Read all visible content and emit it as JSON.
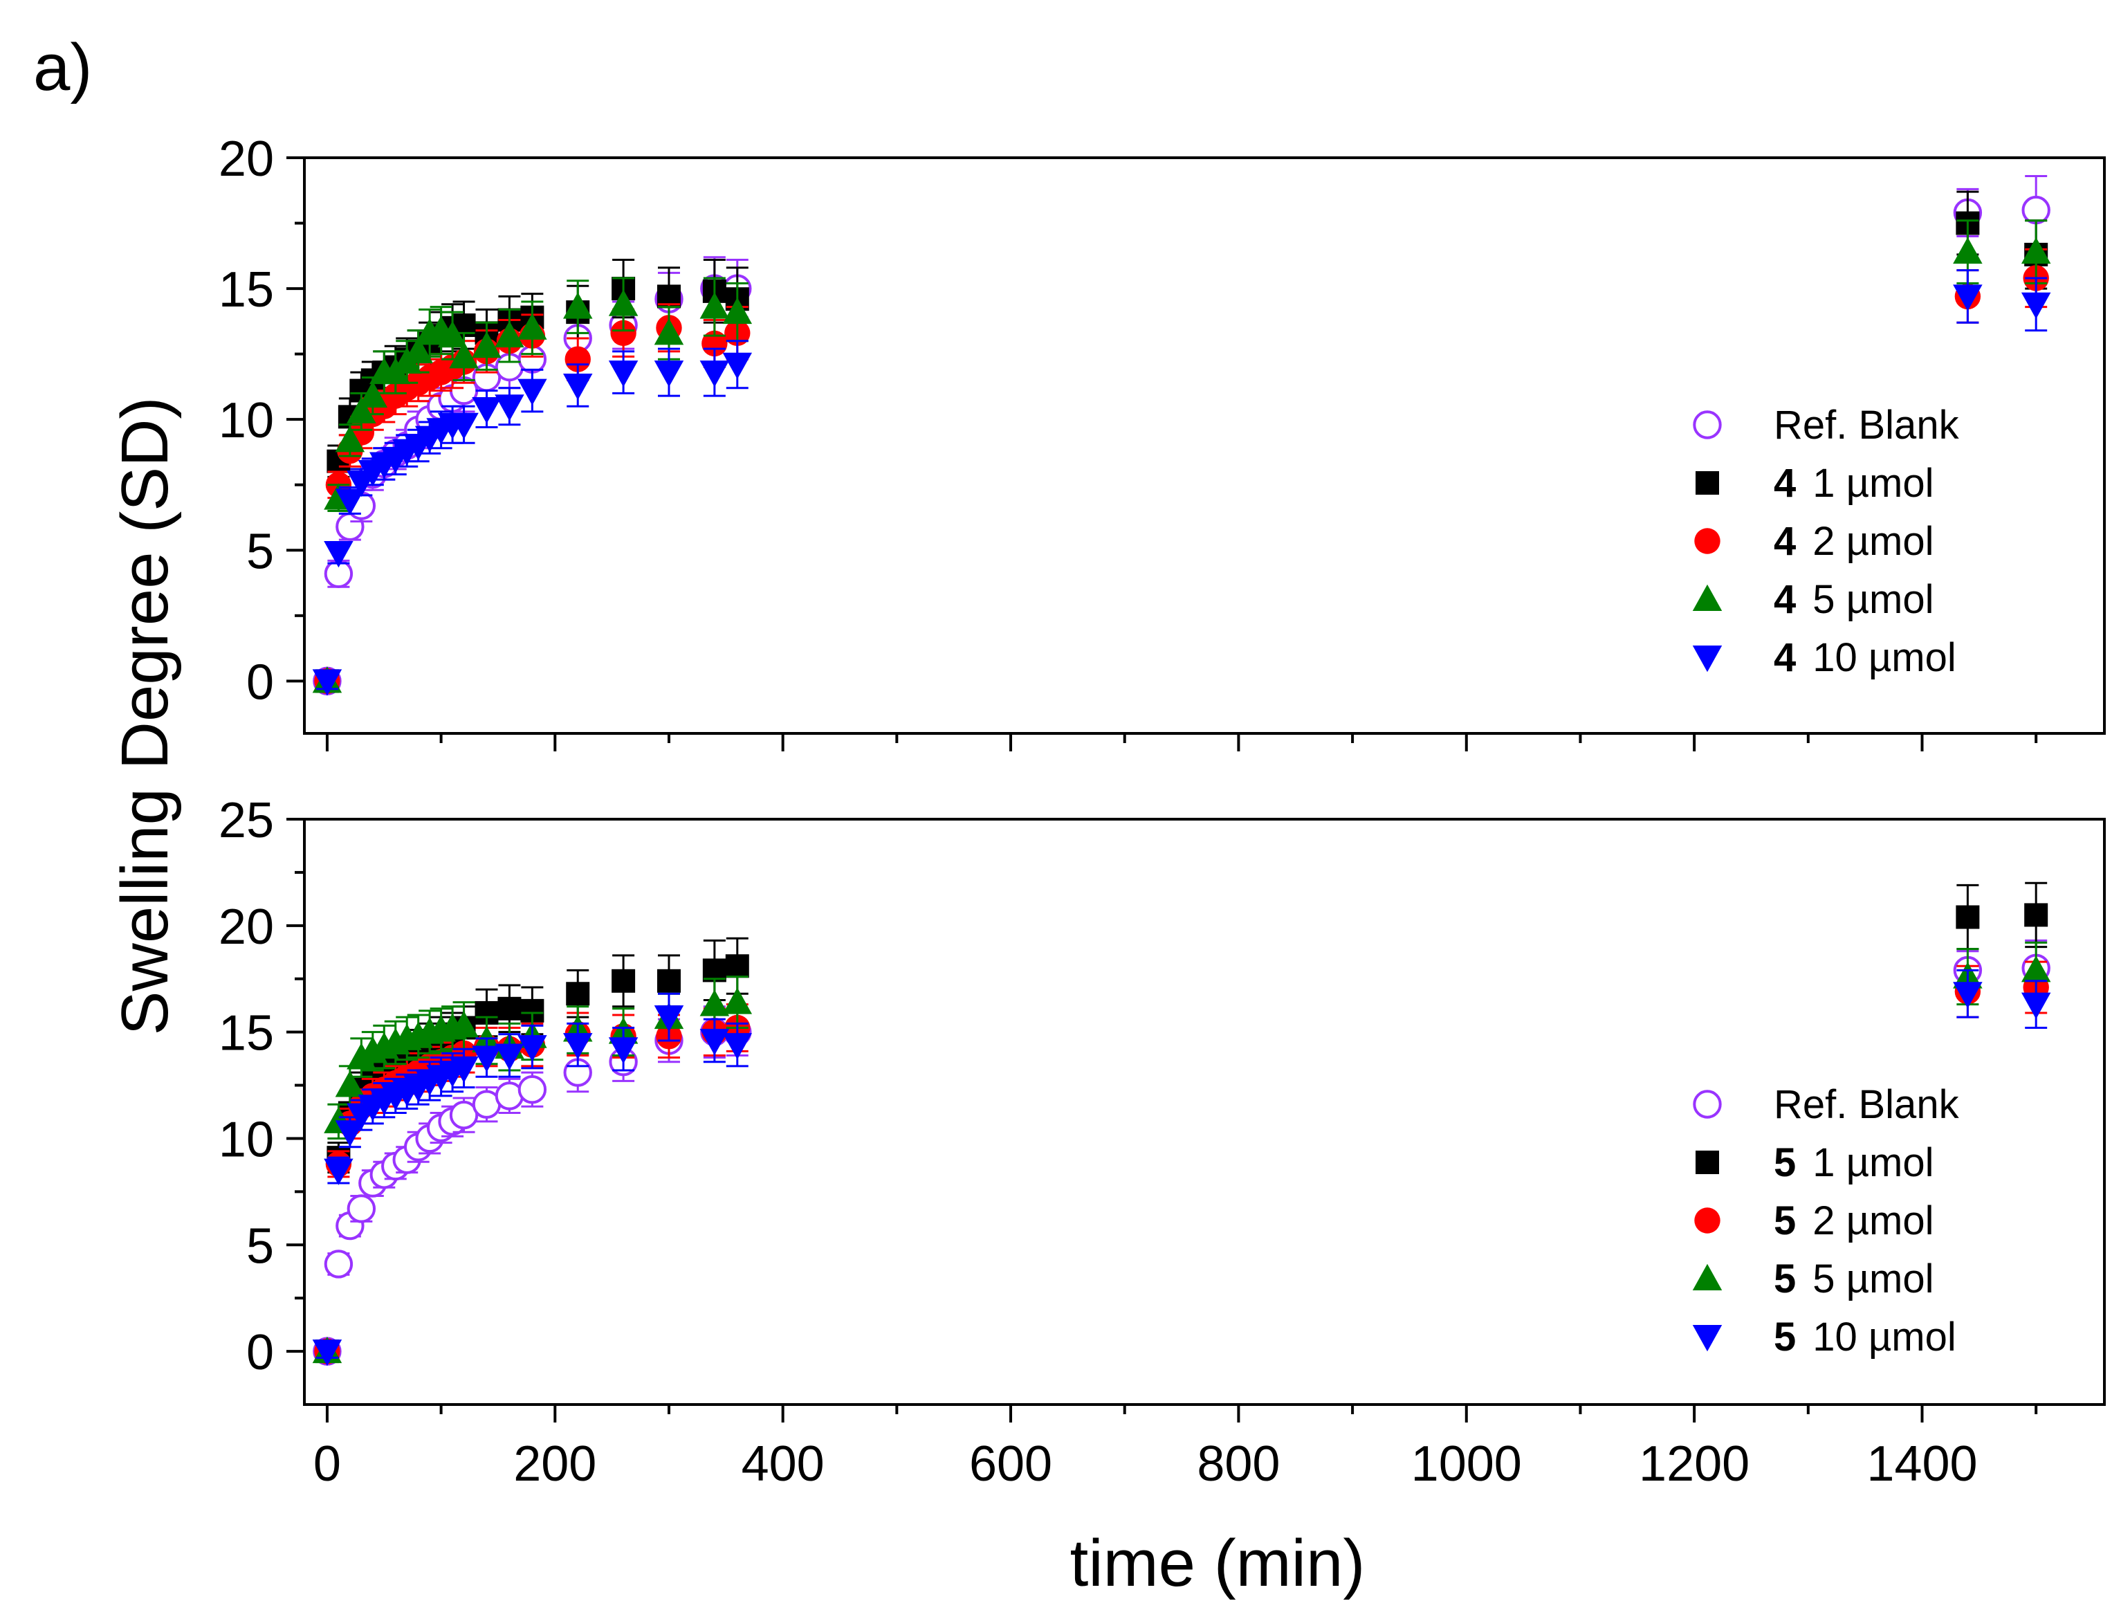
{
  "figure": {
    "panel_label": "a)"
  },
  "chart_data": [
    {
      "type": "scatter",
      "panel": "top",
      "compound": "4",
      "xlabel": "time (min)",
      "ylabel": "Swelling Degree (SD)",
      "xlim": [
        -20,
        1560
      ],
      "ylim": [
        -2,
        20
      ],
      "x_ticks": [
        0,
        200,
        400,
        600,
        800,
        1000,
        1200,
        1400
      ],
      "y_ticks": [
        0,
        5,
        10,
        15,
        20
      ],
      "legend_position": "right-middle",
      "series": [
        {
          "name": "Ref. Blank",
          "label_bold": "",
          "label_rest": "Ref. Blank",
          "marker": "circle-open",
          "color": "#9933ff",
          "x": [
            0,
            10,
            20,
            30,
            40,
            50,
            60,
            70,
            80,
            90,
            100,
            110,
            120,
            140,
            160,
            180,
            220,
            260,
            300,
            340,
            360,
            1440,
            1500
          ],
          "y": [
            0,
            4.1,
            5.9,
            6.7,
            7.9,
            8.3,
            8.7,
            9.0,
            9.6,
            10.0,
            10.5,
            10.8,
            11.1,
            11.6,
            12.0,
            12.3,
            13.1,
            13.6,
            14.6,
            15.0,
            15.0,
            17.9,
            18.0
          ],
          "err": [
            0.3,
            0.5,
            0.5,
            0.6,
            0.6,
            0.6,
            0.6,
            0.6,
            0.7,
            0.7,
            0.7,
            0.7,
            0.8,
            0.8,
            0.8,
            0.8,
            0.9,
            0.9,
            1.0,
            1.2,
            1.1,
            0.9,
            1.3
          ]
        },
        {
          "name": "4 1 µmol",
          "label_bold": "4",
          "label_rest": "1 µmol",
          "marker": "square",
          "color": "#000000",
          "x": [
            0,
            10,
            20,
            30,
            40,
            50,
            60,
            70,
            80,
            90,
            100,
            110,
            120,
            140,
            160,
            180,
            220,
            260,
            300,
            340,
            360,
            1440,
            1500
          ],
          "y": [
            0,
            8.4,
            10.1,
            11.1,
            11.5,
            11.8,
            12.0,
            12.3,
            12.6,
            12.9,
            13.2,
            13.5,
            13.6,
            13.3,
            13.8,
            13.9,
            14.1,
            15.0,
            14.7,
            14.9,
            14.6,
            17.5,
            16.3
          ],
          "err": [
            0.3,
            0.6,
            0.7,
            0.7,
            0.7,
            0.8,
            0.8,
            0.8,
            0.8,
            0.8,
            0.9,
            0.9,
            0.9,
            0.9,
            0.9,
            0.9,
            1.0,
            1.1,
            1.1,
            1.2,
            1.2,
            1.2,
            1.3
          ]
        },
        {
          "name": "4 2 µmol",
          "label_bold": "4",
          "label_rest": "2 µmol",
          "marker": "circle",
          "color": "#ff0000",
          "x": [
            0,
            10,
            20,
            30,
            40,
            50,
            60,
            70,
            80,
            90,
            100,
            110,
            120,
            140,
            160,
            180,
            220,
            260,
            300,
            340,
            360,
            1440,
            1500
          ],
          "y": [
            0,
            7.5,
            8.8,
            9.5,
            10.2,
            10.5,
            10.9,
            11.2,
            11.4,
            11.6,
            11.8,
            12.0,
            12.2,
            12.6,
            13.0,
            13.2,
            12.3,
            13.3,
            13.5,
            12.9,
            13.3,
            14.7,
            15.4
          ],
          "err": [
            0.3,
            0.5,
            0.6,
            0.6,
            0.6,
            0.6,
            0.7,
            0.7,
            0.7,
            0.7,
            0.7,
            0.8,
            0.8,
            0.8,
            0.8,
            0.8,
            0.8,
            0.9,
            0.9,
            0.9,
            1.0,
            1.0,
            1.1
          ]
        },
        {
          "name": "4 5 µmol",
          "label_bold": "4",
          "label_rest": "5 µmol",
          "marker": "triangle-up",
          "color": "#008000",
          "x": [
            0,
            10,
            20,
            30,
            40,
            50,
            60,
            70,
            80,
            90,
            100,
            110,
            120,
            140,
            160,
            180,
            220,
            260,
            300,
            340,
            360,
            1440,
            1500
          ],
          "y": [
            0,
            7.0,
            9.2,
            10.3,
            10.9,
            11.8,
            11.8,
            12.2,
            12.6,
            13.3,
            13.4,
            13.2,
            12.4,
            12.8,
            13.2,
            13.5,
            14.3,
            14.4,
            13.3,
            14.3,
            14.1,
            16.4,
            16.4
          ],
          "err": [
            0.3,
            0.5,
            0.6,
            0.7,
            0.7,
            0.8,
            0.8,
            0.8,
            0.8,
            0.9,
            0.9,
            0.9,
            0.9,
            0.9,
            1.0,
            1.0,
            1.0,
            1.0,
            1.0,
            1.1,
            1.1,
            1.2,
            1.2
          ]
        },
        {
          "name": "4 10 µmol",
          "label_bold": "4",
          "label_rest": "10 µmol",
          "marker": "triangle-down",
          "color": "#0000ff",
          "x": [
            0,
            10,
            20,
            30,
            40,
            50,
            60,
            70,
            80,
            90,
            100,
            110,
            120,
            140,
            160,
            180,
            220,
            260,
            300,
            340,
            360,
            1440,
            1500
          ],
          "y": [
            0,
            4.9,
            6.9,
            7.6,
            8.0,
            8.3,
            8.5,
            8.8,
            9.0,
            9.3,
            9.6,
            9.8,
            9.8,
            10.4,
            10.5,
            11.1,
            11.3,
            11.8,
            11.8,
            11.8,
            12.1,
            14.7,
            14.4
          ],
          "err": [
            0.3,
            0.4,
            0.5,
            0.5,
            0.5,
            0.6,
            0.6,
            0.6,
            0.6,
            0.6,
            0.7,
            0.7,
            0.7,
            0.7,
            0.7,
            0.8,
            0.8,
            0.8,
            0.9,
            0.9,
            0.9,
            1.0,
            1.0
          ]
        }
      ]
    },
    {
      "type": "scatter",
      "panel": "bottom",
      "compound": "5",
      "xlabel": "time (min)",
      "ylabel": "Swelling Degree (SD)",
      "xlim": [
        -20,
        1560
      ],
      "ylim": [
        -2.5,
        25
      ],
      "x_ticks": [
        0,
        200,
        400,
        600,
        800,
        1000,
        1200,
        1400
      ],
      "y_ticks": [
        0,
        5,
        10,
        15,
        20,
        25
      ],
      "legend_position": "bottom-right",
      "series": [
        {
          "name": "Ref. Blank",
          "label_bold": "",
          "label_rest": "Ref. Blank",
          "marker": "circle-open",
          "color": "#9933ff",
          "x": [
            0,
            10,
            20,
            30,
            40,
            50,
            60,
            70,
            80,
            90,
            100,
            110,
            120,
            140,
            160,
            180,
            220,
            260,
            300,
            340,
            360,
            1440,
            1500
          ],
          "y": [
            0,
            4.1,
            5.9,
            6.7,
            7.9,
            8.3,
            8.7,
            9.0,
            9.6,
            10.0,
            10.5,
            10.8,
            11.1,
            11.6,
            12.0,
            12.3,
            13.1,
            13.6,
            14.6,
            15.0,
            15.0,
            17.9,
            18.0
          ],
          "err": [
            0.3,
            0.5,
            0.5,
            0.6,
            0.6,
            0.6,
            0.6,
            0.6,
            0.7,
            0.7,
            0.7,
            0.7,
            0.8,
            0.8,
            0.8,
            0.8,
            0.9,
            0.9,
            1.0,
            1.2,
            1.1,
            0.9,
            1.3
          ]
        },
        {
          "name": "5 1 µmol",
          "label_bold": "5",
          "label_rest": "1 µmol",
          "marker": "square",
          "color": "#000000",
          "x": [
            0,
            10,
            20,
            30,
            40,
            50,
            60,
            70,
            80,
            90,
            100,
            110,
            120,
            140,
            160,
            180,
            220,
            260,
            300,
            340,
            360,
            1440,
            1500
          ],
          "y": [
            0,
            9.1,
            11.2,
            12.3,
            12.8,
            13.1,
            13.5,
            13.8,
            14.1,
            14.4,
            14.7,
            14.9,
            15.2,
            15.9,
            16.1,
            16.0,
            16.8,
            17.4,
            17.4,
            17.9,
            18.1,
            20.4,
            20.5
          ],
          "err": [
            0.3,
            0.7,
            0.8,
            0.8,
            0.9,
            0.9,
            0.9,
            0.9,
            1.0,
            1.0,
            1.0,
            1.0,
            1.0,
            1.1,
            1.1,
            1.1,
            1.1,
            1.2,
            1.2,
            1.4,
            1.3,
            1.5,
            1.5
          ]
        },
        {
          "name": "5 2 µmol",
          "label_bold": "5",
          "label_rest": "2 µmol",
          "marker": "circle",
          "color": "#ff0000",
          "x": [
            0,
            10,
            20,
            30,
            40,
            50,
            60,
            70,
            80,
            90,
            100,
            110,
            120,
            140,
            160,
            180,
            220,
            260,
            300,
            340,
            360,
            1440,
            1500
          ],
          "y": [
            0,
            8.8,
            10.7,
            11.5,
            12.0,
            12.3,
            12.6,
            12.9,
            13.1,
            13.4,
            13.6,
            13.8,
            14.0,
            14.3,
            14.2,
            14.4,
            14.9,
            14.8,
            14.8,
            15.0,
            15.2,
            16.9,
            17.1
          ],
          "err": [
            0.3,
            0.6,
            0.7,
            0.8,
            0.8,
            0.8,
            0.8,
            0.8,
            0.9,
            0.9,
            0.9,
            0.9,
            0.9,
            0.9,
            1.0,
            1.0,
            1.0,
            1.0,
            1.0,
            1.1,
            1.1,
            1.2,
            1.2
          ]
        },
        {
          "name": "5 5 µmol",
          "label_bold": "5",
          "label_rest": "5 µmol",
          "marker": "triangle-up",
          "color": "#008000",
          "x": [
            0,
            10,
            20,
            30,
            40,
            50,
            60,
            70,
            80,
            90,
            100,
            110,
            120,
            140,
            160,
            180,
            220,
            260,
            300,
            340,
            360,
            1440,
            1500
          ],
          "y": [
            0,
            10.8,
            12.5,
            13.8,
            14.1,
            14.3,
            14.5,
            14.7,
            14.8,
            15.0,
            15.1,
            15.2,
            15.3,
            14.6,
            14.3,
            14.8,
            15.1,
            15.0,
            15.7,
            16.3,
            16.4,
            17.6,
            17.9
          ],
          "err": [
            0.3,
            0.8,
            0.9,
            0.9,
            0.9,
            1.0,
            1.0,
            1.0,
            1.0,
            1.0,
            1.0,
            1.0,
            1.1,
            1.1,
            1.1,
            1.1,
            1.1,
            1.1,
            1.1,
            1.2,
            1.2,
            1.3,
            1.3
          ]
        },
        {
          "name": "5 10 µmol",
          "label_bold": "5",
          "label_rest": "10 µmol",
          "marker": "triangle-down",
          "color": "#0000ff",
          "x": [
            0,
            10,
            20,
            30,
            40,
            50,
            60,
            70,
            80,
            90,
            100,
            110,
            120,
            140,
            160,
            180,
            220,
            260,
            300,
            340,
            360,
            1440,
            1500
          ],
          "y": [
            0,
            8.5,
            10.3,
            11.1,
            11.5,
            11.8,
            12.0,
            12.2,
            12.4,
            12.7,
            12.9,
            13.1,
            13.3,
            13.8,
            13.9,
            14.3,
            14.4,
            14.2,
            15.7,
            14.6,
            14.4,
            16.8,
            16.3
          ],
          "err": [
            0.3,
            0.6,
            0.7,
            0.7,
            0.8,
            0.8,
            0.8,
            0.8,
            0.8,
            0.9,
            0.9,
            0.9,
            0.9,
            0.9,
            1.0,
            1.0,
            1.0,
            1.0,
            1.1,
            1.0,
            1.0,
            1.1,
            1.1
          ]
        }
      ]
    }
  ]
}
